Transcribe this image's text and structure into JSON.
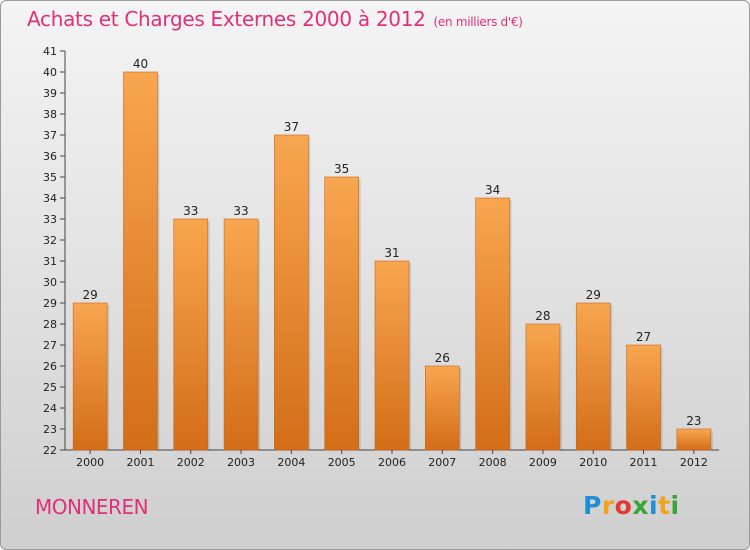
{
  "chart_data": {
    "type": "bar",
    "title": "Achats et Charges Externes 2000 à 2012",
    "subtitle": "(en milliers d'€)",
    "categories": [
      "2000",
      "2001",
      "2002",
      "2003",
      "2004",
      "2005",
      "2006",
      "2007",
      "2008",
      "2009",
      "2010",
      "2011",
      "2012"
    ],
    "values": [
      29,
      40,
      33,
      33,
      37,
      35,
      31,
      26,
      34,
      28,
      29,
      27,
      23
    ],
    "xlabel": "",
    "ylabel": "",
    "ylim": [
      22,
      41
    ],
    "yticks": [
      22,
      23,
      24,
      25,
      26,
      27,
      28,
      29,
      30,
      31,
      32,
      33,
      34,
      35,
      36,
      37,
      38,
      39,
      40,
      41
    ],
    "grid": false,
    "legend": "none",
    "bar_color": "#f29a3c"
  },
  "location": "MONNEREN",
  "logo": {
    "letters": [
      "P",
      "r",
      "o",
      "x",
      "i",
      "t",
      "i"
    ],
    "colors": [
      "#1e8fd6",
      "#f0a31b",
      "#e23a2e",
      "#3aa535",
      "#1e8fd6",
      "#f0a31b",
      "#3aa535"
    ]
  },
  "colors": {
    "accent": "#e0307a",
    "bar": "#f29a3c"
  }
}
